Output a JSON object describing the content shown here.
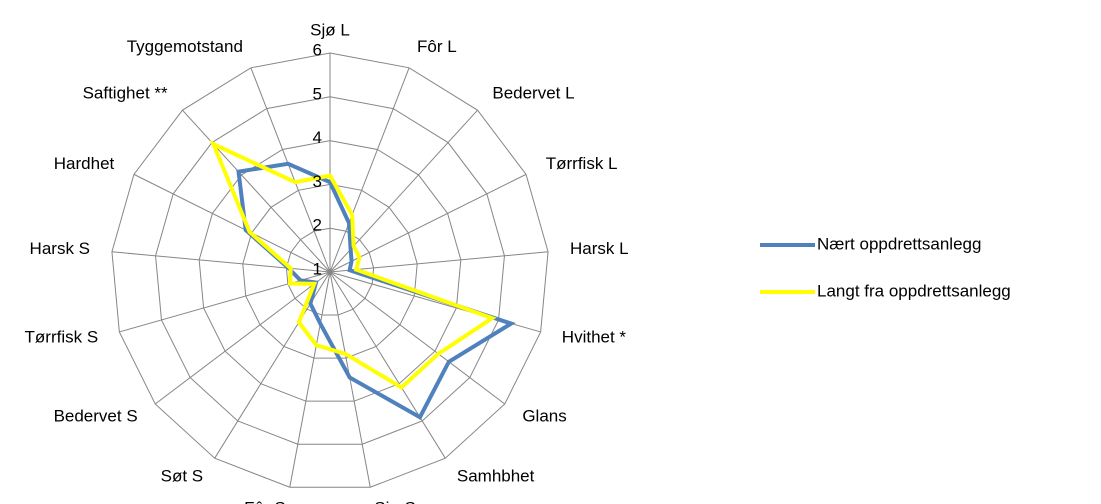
{
  "chart_data": {
    "type": "radar",
    "categories": [
      "Sjø L",
      "Fôr L",
      "Bedervet L",
      "Tørrfisk L",
      "Harsk L",
      "Hvithet *",
      "Glans",
      "Samhbhet",
      "Sjø S",
      "Fôr S",
      "Søt S",
      "Bedervet S",
      "Tørrfisk S",
      "Harsk S",
      "Hardhet",
      "Saftighet **",
      "Tyggemotstand"
    ],
    "series": [
      {
        "name": "Nært oppdrettsanlegg",
        "color": "#4f81bd",
        "values": [
          3.05,
          2.2,
          1.7,
          1.55,
          1.45,
          5.3,
          4.4,
          4.9,
          3.45,
          2.2,
          1.85,
          1.4,
          1.7,
          1.95,
          3.15,
          4.1,
          3.65
        ]
      },
      {
        "name": "Langt fra oppdrettsanlegg",
        "color": "#ffff00",
        "values": [
          3.2,
          2.4,
          1.8,
          1.75,
          1.6,
          4.85,
          4.1,
          4.1,
          2.9,
          2.7,
          2.35,
          1.45,
          1.95,
          1.9,
          3.05,
          4.95,
          3.2
        ]
      }
    ],
    "ylim": [
      1,
      6
    ],
    "yticks": [
      1,
      2,
      3,
      4,
      5,
      6
    ],
    "grid": true,
    "legend": "right"
  }
}
